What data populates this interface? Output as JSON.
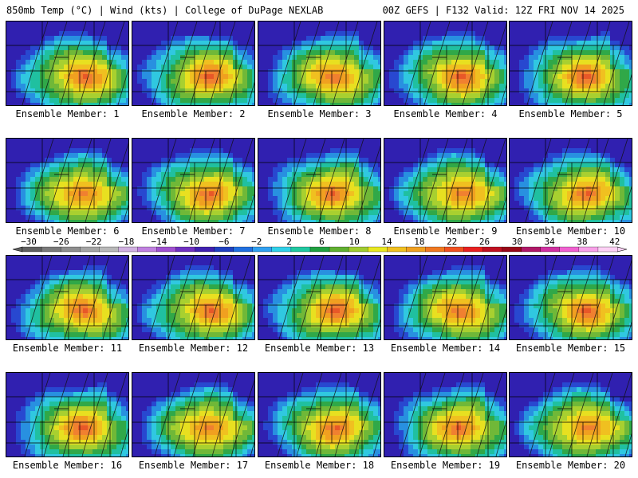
{
  "header": {
    "left": "850mb Temp (°C) | Wind (kts) | College of DuPage NEXLAB",
    "right": "00Z GEFS | F132 Valid: 12Z FRI NOV 14 2025"
  },
  "member_prefix": "Ensemble Member:",
  "members": [
    {
      "label": "Ensemble Member: 1"
    },
    {
      "label": "Ensemble Member: 2"
    },
    {
      "label": "Ensemble Member: 3"
    },
    {
      "label": "Ensemble Member: 4"
    },
    {
      "label": "Ensemble Member: 5"
    },
    {
      "label": "Ensemble Member: 6"
    },
    {
      "label": "Ensemble Member: 7"
    },
    {
      "label": "Ensemble Member: 8"
    },
    {
      "label": "Ensemble Member: 9"
    },
    {
      "label": "Ensemble Member: 10"
    },
    {
      "label": "Ensemble Member: 11"
    },
    {
      "label": "Ensemble Member: 12"
    },
    {
      "label": "Ensemble Member: 13"
    },
    {
      "label": "Ensemble Member: 14"
    },
    {
      "label": "Ensemble Member: 15"
    },
    {
      "label": "Ensemble Member: 16"
    },
    {
      "label": "Ensemble Member: 17"
    },
    {
      "label": "Ensemble Member: 18"
    },
    {
      "label": "Ensemble Member: 19"
    },
    {
      "label": "Ensemble Member: 20"
    }
  ],
  "colorbar": {
    "ticks": [
      "−30",
      "−26",
      "−22",
      "−18",
      "−14",
      "−10",
      "−6",
      "−2",
      "2",
      "6",
      "10",
      "14",
      "18",
      "22",
      "26",
      "30",
      "34",
      "38",
      "42"
    ],
    "colors": [
      "#606060",
      "#7a7a7a",
      "#8e8e8e",
      "#a4a4a4",
      "#b8b8b8",
      "#d0b0e0",
      "#c080e0",
      "#a050d0",
      "#7030c0",
      "#4020b0",
      "#2040c0",
      "#2070e0",
      "#30a0f0",
      "#30d0e8",
      "#20c8a0",
      "#20a040",
      "#60b030",
      "#a0cc30",
      "#e8e820",
      "#f0c020",
      "#f0a020",
      "#f07820",
      "#f05020",
      "#e82020",
      "#c01020",
      "#980818",
      "#b01868",
      "#d030a0",
      "#f060d0",
      "#f8a0e8",
      "#fcd0f4"
    ]
  }
}
